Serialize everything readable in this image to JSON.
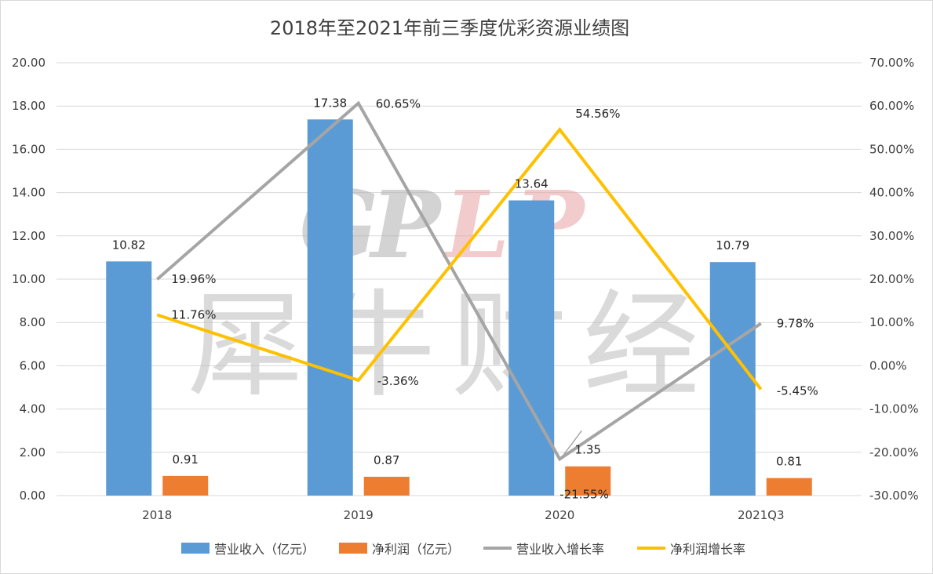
{
  "chart_data": {
    "type": "bar",
    "title": "2018年至2021年前三季度优彩资源业绩图",
    "categories": [
      "2018",
      "2019",
      "2020",
      "2021Q3"
    ],
    "y_left": {
      "ylim": [
        0,
        20
      ],
      "tick_labels": [
        "0.00",
        "2.00",
        "4.00",
        "6.00",
        "8.00",
        "10.00",
        "12.00",
        "14.00",
        "16.00",
        "18.00",
        "20.00"
      ]
    },
    "y_right": {
      "ylim": [
        -30,
        70
      ],
      "tick_labels": [
        "-30.00%",
        "-20.00%",
        "-10.00%",
        "0.00%",
        "10.00%",
        "20.00%",
        "30.00%",
        "40.00%",
        "50.00%",
        "60.00%",
        "70.00%"
      ]
    },
    "grid": true,
    "legend_position": "bottom",
    "series": [
      {
        "name": "营业收入（亿元）",
        "type": "bar",
        "axis": "left",
        "color": "#5b9bd5",
        "values": [
          10.82,
          17.38,
          13.64,
          10.79
        ],
        "labels": [
          "10.82",
          "17.38",
          "13.64",
          "10.79"
        ]
      },
      {
        "name": "净利润（亿元）",
        "type": "bar",
        "axis": "left",
        "color": "#ed7d31",
        "values": [
          0.91,
          0.87,
          1.35,
          0.81
        ],
        "labels": [
          "0.91",
          "0.87",
          "1.35",
          "0.81"
        ]
      },
      {
        "name": "营业收入增长率",
        "type": "line",
        "axis": "right",
        "color": "#a5a5a5",
        "values": [
          19.96,
          60.65,
          -21.55,
          9.78
        ],
        "labels": [
          "19.96%",
          "60.65%",
          "-21.55%",
          "9.78%"
        ]
      },
      {
        "name": "净利润增长率",
        "type": "line",
        "axis": "right",
        "color": "#ffc000",
        "values": [
          11.76,
          -3.36,
          54.56,
          -5.45
        ],
        "labels": [
          "11.76%",
          "-3.36%",
          "54.56%",
          "-5.45%"
        ]
      }
    ],
    "watermark": {
      "latin": [
        "G",
        "P",
        "L",
        "P"
      ],
      "latin_colors": [
        "#b0b0b0",
        "#b0b0b0",
        "#e8a3a3",
        "#e8a3a3"
      ],
      "cjk": "犀牛财经"
    }
  }
}
